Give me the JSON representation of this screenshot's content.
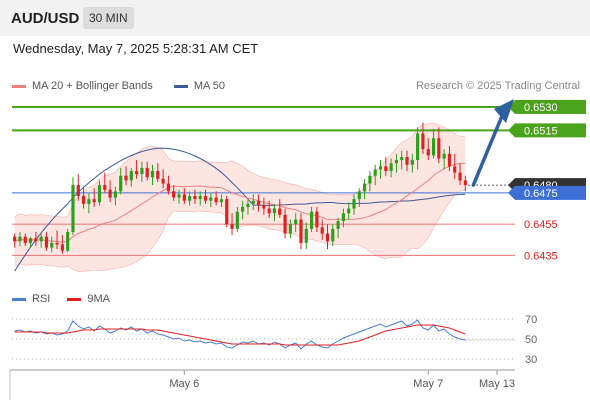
{
  "header": {
    "symbol": "AUD/USD",
    "timeframe": "30 MIN",
    "datetime": "Wednesday, May 7, 2025 5:28:31 AM CET",
    "credit": "Research © 2025 Trading Central"
  },
  "colors": {
    "bullish": "#2e9e1e",
    "bearish": "#e02020",
    "ma20": "#f08080",
    "ma50": "#3a5a9a",
    "band_fill": "#fbd5cf",
    "resistance": "#4aa31a",
    "pivot": "#3d6fd6",
    "support": "#f08080",
    "arrow": "#2e5f9e",
    "rsi": "#4a7fd6",
    "rsi_ma": "#e02020"
  },
  "chart_data": [
    {
      "type": "candlestick",
      "legend": [
        {
          "name": "MA 20 + Bollinger Bands",
          "color": "#f08080"
        },
        {
          "name": "MA 50",
          "color": "#3a5a9a"
        }
      ],
      "ylim": [
        0.6418,
        0.6537
      ],
      "x_ticks": [
        "May 6",
        "May 7",
        "May 13"
      ],
      "levels": [
        {
          "label": "0.6530",
          "value": 0.653,
          "kind": "resistance"
        },
        {
          "label": "0.6515",
          "value": 0.6515,
          "kind": "resistance"
        },
        {
          "label": "0.6480",
          "value": 0.648,
          "kind": "last"
        },
        {
          "label": "0.6475",
          "value": 0.6475,
          "kind": "pivot"
        },
        {
          "label": "0.6455",
          "value": 0.6455,
          "kind": "support"
        },
        {
          "label": "0.6435",
          "value": 0.6435,
          "kind": "support"
        }
      ],
      "forecast_target": 0.653,
      "ohlc": [
        [
          0.6447,
          0.6449,
          0.644,
          0.6444
        ],
        [
          0.6444,
          0.645,
          0.6441,
          0.6447
        ],
        [
          0.6447,
          0.6449,
          0.6441,
          0.6443
        ],
        [
          0.6443,
          0.6447,
          0.644,
          0.6446
        ],
        [
          0.6446,
          0.645,
          0.6441,
          0.6444
        ],
        [
          0.6444,
          0.6449,
          0.644,
          0.6447
        ],
        [
          0.6447,
          0.645,
          0.6438,
          0.644
        ],
        [
          0.644,
          0.6447,
          0.6437,
          0.6443
        ],
        [
          0.6443,
          0.6451,
          0.6439,
          0.6442
        ],
        [
          0.6442,
          0.6448,
          0.6436,
          0.6438
        ],
        [
          0.6438,
          0.6452,
          0.6437,
          0.645
        ],
        [
          0.645,
          0.6485,
          0.6448,
          0.648
        ],
        [
          0.648,
          0.6487,
          0.647,
          0.6473
        ],
        [
          0.6473,
          0.6479,
          0.6465,
          0.6468
        ],
        [
          0.6468,
          0.6475,
          0.6462,
          0.6471
        ],
        [
          0.6471,
          0.6478,
          0.6466,
          0.6469
        ],
        [
          0.6469,
          0.6483,
          0.6467,
          0.648
        ],
        [
          0.648,
          0.6488,
          0.6475,
          0.6477
        ],
        [
          0.6477,
          0.6483,
          0.6469,
          0.6472
        ],
        [
          0.6472,
          0.6479,
          0.6467,
          0.6476
        ],
        [
          0.6476,
          0.6491,
          0.6474,
          0.6486
        ],
        [
          0.6486,
          0.6492,
          0.648,
          0.6483
        ],
        [
          0.6483,
          0.6491,
          0.6479,
          0.6489
        ],
        [
          0.6489,
          0.6496,
          0.6484,
          0.6487
        ],
        [
          0.6487,
          0.6495,
          0.6482,
          0.6491
        ],
        [
          0.6491,
          0.6495,
          0.6483,
          0.6485
        ],
        [
          0.6485,
          0.6493,
          0.648,
          0.6489
        ],
        [
          0.6489,
          0.6494,
          0.6482,
          0.6484
        ],
        [
          0.6484,
          0.649,
          0.6478,
          0.6481
        ],
        [
          0.6481,
          0.6486,
          0.6474,
          0.6476
        ],
        [
          0.6476,
          0.648,
          0.647,
          0.6472
        ],
        [
          0.6472,
          0.6477,
          0.6468,
          0.6474
        ],
        [
          0.6474,
          0.6478,
          0.6468,
          0.647
        ],
        [
          0.647,
          0.6476,
          0.6467,
          0.6473
        ],
        [
          0.6473,
          0.6477,
          0.6468,
          0.6471
        ],
        [
          0.6471,
          0.6476,
          0.6467,
          0.6473
        ],
        [
          0.6473,
          0.6477,
          0.6468,
          0.647
        ],
        [
          0.647,
          0.6475,
          0.6466,
          0.6472
        ],
        [
          0.6472,
          0.6476,
          0.6467,
          0.6469
        ],
        [
          0.6469,
          0.6474,
          0.6466,
          0.6471
        ],
        [
          0.6471,
          0.6473,
          0.6453,
          0.6455
        ],
        [
          0.6455,
          0.6462,
          0.6448,
          0.6452
        ],
        [
          0.6452,
          0.6466,
          0.645,
          0.6463
        ],
        [
          0.6463,
          0.647,
          0.6458,
          0.6466
        ],
        [
          0.6466,
          0.6471,
          0.6461,
          0.6468
        ],
        [
          0.6468,
          0.6474,
          0.6464,
          0.647
        ],
        [
          0.647,
          0.6474,
          0.6463,
          0.6467
        ],
        [
          0.6467,
          0.6472,
          0.6461,
          0.6465
        ],
        [
          0.6465,
          0.647,
          0.6459,
          0.6462
        ],
        [
          0.6462,
          0.6468,
          0.6457,
          0.6465
        ],
        [
          0.6465,
          0.6471,
          0.6459,
          0.6461
        ],
        [
          0.6461,
          0.6465,
          0.6446,
          0.6449
        ],
        [
          0.6449,
          0.6458,
          0.6446,
          0.6455
        ],
        [
          0.6455,
          0.6462,
          0.645,
          0.6458
        ],
        [
          0.6458,
          0.6462,
          0.6439,
          0.6443
        ],
        [
          0.6443,
          0.6456,
          0.6439,
          0.6452
        ],
        [
          0.6452,
          0.6466,
          0.645,
          0.6463
        ],
        [
          0.6463,
          0.6466,
          0.645,
          0.6453
        ],
        [
          0.6453,
          0.6458,
          0.6445,
          0.6449
        ],
        [
          0.6449,
          0.6455,
          0.6439,
          0.6444
        ],
        [
          0.6444,
          0.6455,
          0.6441,
          0.6452
        ],
        [
          0.6452,
          0.6459,
          0.6446,
          0.6457
        ],
        [
          0.6457,
          0.6465,
          0.6453,
          0.6462
        ],
        [
          0.6462,
          0.6469,
          0.6458,
          0.6465
        ],
        [
          0.6465,
          0.6474,
          0.6461,
          0.6471
        ],
        [
          0.6471,
          0.6478,
          0.6466,
          0.6476
        ],
        [
          0.6476,
          0.6484,
          0.6471,
          0.6481
        ],
        [
          0.6481,
          0.6489,
          0.6476,
          0.6486
        ],
        [
          0.6486,
          0.6493,
          0.648,
          0.649
        ],
        [
          0.649,
          0.6496,
          0.6484,
          0.6492
        ],
        [
          0.6492,
          0.6498,
          0.6486,
          0.6489
        ],
        [
          0.6489,
          0.6497,
          0.6485,
          0.6494
        ],
        [
          0.6494,
          0.65,
          0.6488,
          0.6496
        ],
        [
          0.6496,
          0.6502,
          0.649,
          0.6498
        ],
        [
          0.6498,
          0.6502,
          0.6489,
          0.6493
        ],
        [
          0.6493,
          0.65,
          0.6488,
          0.6496
        ],
        [
          0.6496,
          0.6517,
          0.649,
          0.6513
        ],
        [
          0.6513,
          0.652,
          0.65,
          0.6503
        ],
        [
          0.6503,
          0.651,
          0.6496,
          0.6499
        ],
        [
          0.6499,
          0.6516,
          0.6497,
          0.651
        ],
        [
          0.651,
          0.6517,
          0.6494,
          0.6497
        ],
        [
          0.6497,
          0.6503,
          0.649,
          0.65
        ],
        [
          0.65,
          0.6505,
          0.6489,
          0.6492
        ],
        [
          0.6492,
          0.65,
          0.6484,
          0.6488
        ],
        [
          0.6488,
          0.6494,
          0.648,
          0.6483
        ],
        [
          0.6483,
          0.6486,
          0.6476,
          0.648
        ]
      ]
    },
    {
      "type": "line",
      "legend": [
        {
          "name": "RSI",
          "color": "#4a7fd6"
        },
        {
          "name": "9MA",
          "color": "#e02020"
        }
      ],
      "ylim": [
        25,
        75
      ],
      "y_ticks": [
        70,
        50,
        30
      ],
      "series": [
        {
          "name": "RSI",
          "values": [
            58,
            59,
            57,
            58,
            56,
            57,
            55,
            56,
            54,
            55,
            58,
            68,
            63,
            60,
            62,
            58,
            63,
            60,
            56,
            58,
            61,
            59,
            62,
            58,
            60,
            56,
            58,
            55,
            54,
            52,
            50,
            51,
            48,
            49,
            47,
            48,
            46,
            47,
            45,
            46,
            42,
            41,
            44,
            47,
            46,
            48,
            45,
            46,
            44,
            47,
            45,
            41,
            44,
            46,
            40,
            45,
            48,
            44,
            42,
            41,
            45,
            48,
            51,
            53,
            55,
            57,
            59,
            61,
            63,
            65,
            62,
            64,
            66,
            68,
            63,
            65,
            69,
            61,
            59,
            64,
            58,
            60,
            55,
            52,
            50,
            49
          ]
        },
        {
          "name": "9MA",
          "values": [
            57,
            57,
            57,
            57,
            57,
            57,
            56,
            56,
            56,
            56,
            56,
            57,
            58,
            59,
            59,
            59,
            60,
            60,
            60,
            60,
            60,
            60,
            60,
            60,
            60,
            59,
            59,
            59,
            58,
            57,
            56,
            55,
            54,
            53,
            52,
            51,
            50,
            49,
            48,
            47,
            46,
            45,
            45,
            45,
            45,
            45,
            45,
            45,
            45,
            45,
            45,
            44,
            44,
            44,
            44,
            44,
            44,
            44,
            44,
            44,
            44,
            44,
            45,
            46,
            47,
            48,
            50,
            52,
            54,
            56,
            58,
            59,
            60,
            61,
            62,
            63,
            64,
            64,
            64,
            64,
            63,
            62,
            61,
            59,
            57,
            55
          ]
        }
      ]
    }
  ]
}
